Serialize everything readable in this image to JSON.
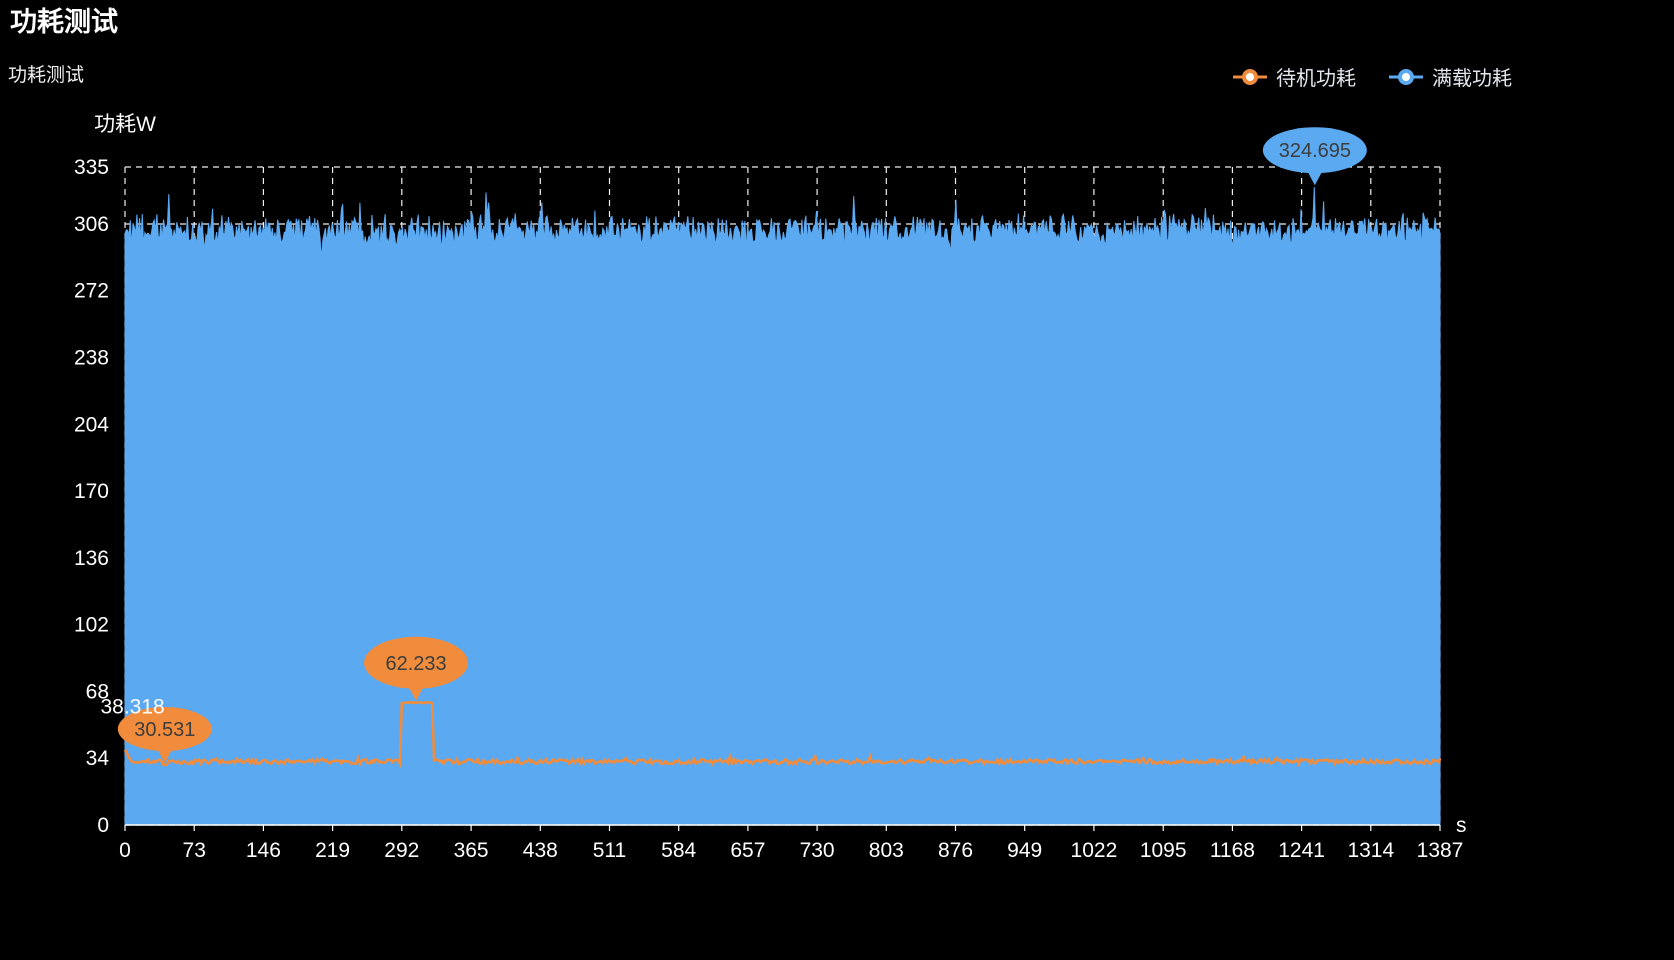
{
  "title": "功耗测试",
  "subtitle": "功耗测试",
  "legend": {
    "items": [
      {
        "label": "待机功耗",
        "color": "#F08C3B"
      },
      {
        "label": "满载功耗",
        "color": "#5BA9F1"
      }
    ]
  },
  "chart_data": {
    "type": "area",
    "title": "功耗测试",
    "ylabel": "功耗W",
    "x_unit": "s",
    "xlim": [
      0,
      1387
    ],
    "ylim": [
      0,
      335
    ],
    "x_ticks": [
      0,
      73,
      146,
      219,
      292,
      365,
      438,
      511,
      584,
      657,
      730,
      803,
      876,
      949,
      1022,
      1095,
      1168,
      1241,
      1314,
      1387
    ],
    "y_ticks": [
      0,
      34,
      68,
      102,
      136,
      170,
      204,
      238,
      272,
      306,
      335
    ],
    "grid": true,
    "legend_position": "top-right",
    "background": "#000000",
    "series": [
      {
        "name": "满载功耗",
        "type": "area",
        "color": "#5BA9F1",
        "baseline": 303,
        "noise_amplitude": 10,
        "approx_range": [
          290,
          320
        ],
        "max_point": {
          "x": 1255,
          "y": 324.695,
          "label": "324.695"
        }
      },
      {
        "name": "待机功耗",
        "type": "line",
        "color": "#F08C3B",
        "baseline": 32.3,
        "noise_amplitude": 1.5,
        "start_value": 38.318,
        "min_point": {
          "x": 42,
          "y": 30.531,
          "label": "30.531"
        },
        "spike": {
          "x_start": 292,
          "x_end": 324,
          "value": 62.233,
          "label": "62.233"
        },
        "annotations": [
          {
            "x": 8,
            "y": 38.318,
            "label": "38.318",
            "style": "text"
          }
        ]
      }
    ]
  }
}
